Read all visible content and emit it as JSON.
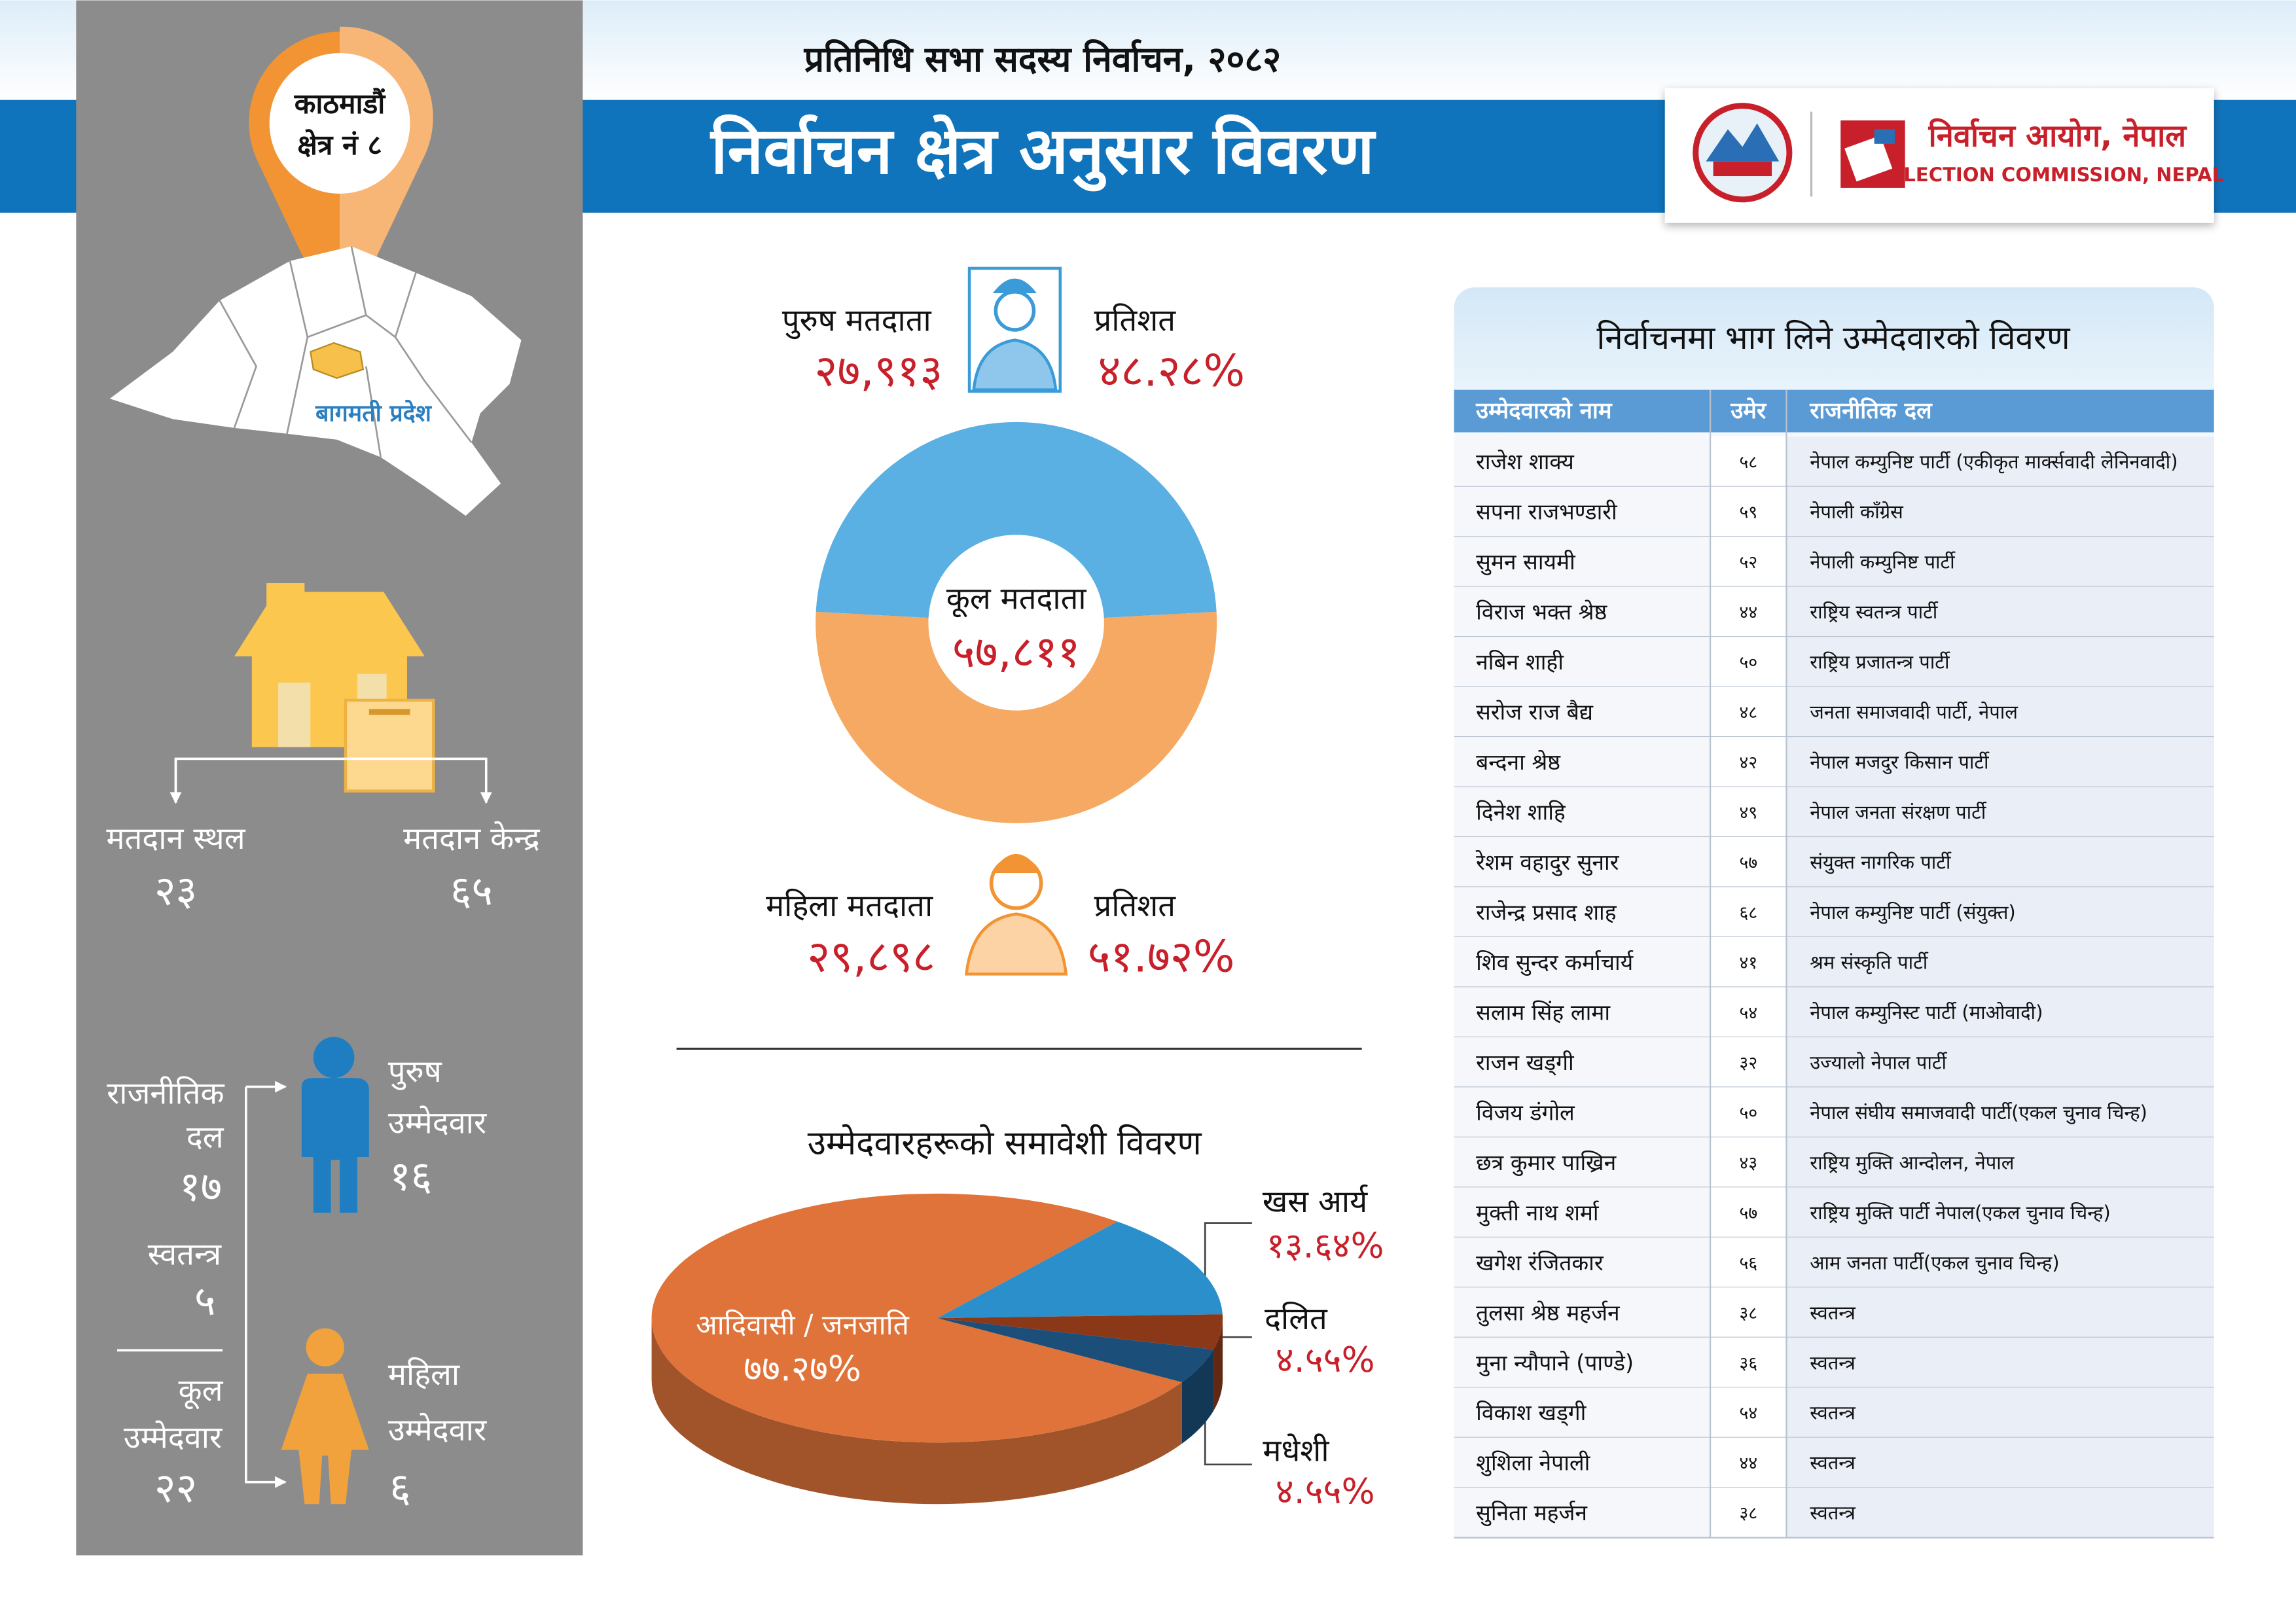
{
  "header": {
    "subtitle": "प्रतिनिधि सभा सदस्य निर्वाचन, २०८२",
    "title": "निर्वाचन क्षेत्र अनुसार विवरण",
    "logo_np": "निर्वाचन आयोग, नेपाल",
    "logo_en": "ELECTION COMMISSION, NEPAL"
  },
  "sidebar": {
    "constituency": [
      "काठमाडौं",
      "क्षेत्र नं ८"
    ],
    "province": "बागमती प्रदेश",
    "polling": [
      {
        "label": "मतदान स्थल",
        "count": "२३"
      },
      {
        "label": "मतदान केन्द्र",
        "count": "६५"
      }
    ],
    "candidates": {
      "party_label": [
        "राजनीतिक",
        "दल"
      ],
      "party": "१७",
      "independent_label": "स्वतन्त्र",
      "independent": "५",
      "total_label": [
        "कूल",
        "उम्मेदवार"
      ],
      "total": "२२",
      "male_label": [
        "पुरुष",
        "उम्मेदवार"
      ],
      "male": "१६",
      "female_label": [
        "महिला",
        "उम्मेदवार"
      ],
      "female": "६"
    }
  },
  "chart_data": [
    {
      "type": "donut",
      "categories": [
        "पुरुष मतदाता",
        "महिला मतदाता"
      ],
      "values": [
        48.28,
        51.72
      ],
      "value_labels": [
        "४८.२८%",
        "५१.७२%"
      ],
      "counts": [
        "२७,९१३",
        "२९,८९८"
      ],
      "value_caption": "प्रतिशत",
      "center_label": "कूल मतदाता",
      "total": "५७,८११",
      "colors": [
        "#5aafe3",
        "#f6a962"
      ]
    },
    {
      "type": "pie3d",
      "title": "उम्मेदवारहरूको समावेशी विवरण",
      "categories": [
        "आदिवासी / जनजाति",
        "खस आर्य",
        "दलित",
        "मधेशी"
      ],
      "values": [
        77.27,
        13.64,
        4.55,
        4.55
      ],
      "value_labels": [
        "७७.२७%",
        "१३.६४%",
        "४.५५%",
        "४.५५%"
      ],
      "colors": [
        "#e0733a",
        "#2b8fcb",
        "#8a3818",
        "#1b4e78"
      ]
    }
  ],
  "candidates": {
    "title": "निर्वाचनमा भाग लिने उम्मेदवारको विवरण",
    "columns": [
      "उम्मेदवारको नाम",
      "उमेर",
      "राजनीतिक दल"
    ],
    "rows": [
      [
        "राजेश शाक्य",
        "५८",
        "नेपाल कम्युनिष्ट पार्टी (एकीकृत मार्क्सवादी लेनिनवादी)"
      ],
      [
        "सपना राजभण्डारी",
        "५९",
        "नेपाली काँग्रेस"
      ],
      [
        "सुमन सायमी",
        "५२",
        "नेपाली कम्युनिष्ट पार्टी"
      ],
      [
        "विराज भक्त श्रेष्ठ",
        "४४",
        "राष्ट्रिय स्वतन्त्र पार्टी"
      ],
      [
        "नबिन शाही",
        "५०",
        "राष्ट्रिय प्रजातन्त्र पार्टी"
      ],
      [
        "सरोज राज बैद्य",
        "४८",
        "जनता समाजवादी पार्टी, नेपाल"
      ],
      [
        "बन्दना श्रेष्ठ",
        "४२",
        "नेपाल मजदुर किसान पार्टी"
      ],
      [
        "दिनेश शाहि",
        "४९",
        "नेपाल जनता संरक्षण पार्टी"
      ],
      [
        "रेशम वहादुर सुनार",
        "५७",
        "संयुक्त नागरिक पार्टी"
      ],
      [
        "राजेन्द्र प्रसाद शाह",
        "६८",
        "नेपाल कम्युनिष्ट पार्टी (संयुक्त)"
      ],
      [
        "शिव सुन्दर कर्माचार्य",
        "४१",
        "श्रम संस्कृति पार्टी"
      ],
      [
        "सलाम सिंह लामा",
        "५४",
        "नेपाल कम्युनिस्ट पार्टी (माओवादी)"
      ],
      [
        "राजन खड्गी",
        "३२",
        "उज्यालो नेपाल पार्टी"
      ],
      [
        "विजय डंगोल",
        "५०",
        "नेपाल संघीय समाजवादी पार्टी(एकल चुनाव चिन्ह)"
      ],
      [
        "छत्र कुमार पाख्रिन",
        "४३",
        "राष्ट्रिय मुक्ति आन्दोलन, नेपाल"
      ],
      [
        "मुक्ती नाथ शर्मा",
        "५७",
        "राष्ट्रिय मुक्ति पार्टी नेपाल(एकल चुनाव चिन्ह)"
      ],
      [
        "खगेश रंजितकार",
        "५६",
        "आम जनता पार्टी(एकल चुनाव चिन्ह)"
      ],
      [
        "तुलसा श्रेष्ठ महर्जन",
        "३८",
        "स्वतन्त्र"
      ],
      [
        "मुना न्यौपाने (पाण्डे)",
        "३६",
        "स्वतन्त्र"
      ],
      [
        "विकाश खड्गी",
        "५४",
        "स्वतन्त्र"
      ],
      [
        "शुशिला नेपाली",
        "४४",
        "स्वतन्त्र"
      ],
      [
        "सुनिता महर्जन",
        "३८",
        "स्वतन्त्र"
      ]
    ]
  }
}
